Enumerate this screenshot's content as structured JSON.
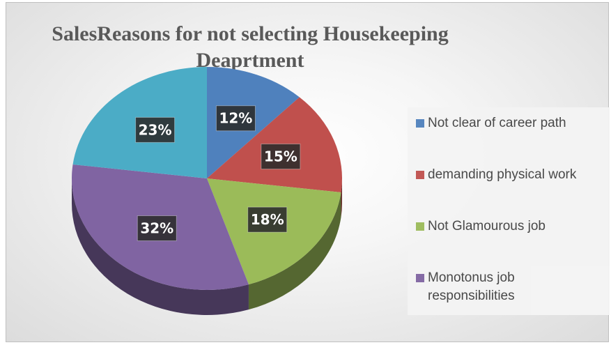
{
  "chart_data": {
    "type": "pie",
    "title": "SalesReasons for not selecting Housekeeping Deaprtment",
    "slices": [
      {
        "label": "Not clear of career path",
        "value": 12,
        "value_label": "12%",
        "color": "#4F81BD"
      },
      {
        "label": "demanding physical work",
        "value": 15,
        "value_label": "15%",
        "color": "#C0504D"
      },
      {
        "label": "Not Glamourous job",
        "value": 18,
        "value_label": "18%",
        "color": "#9BBB59"
      },
      {
        "label": "Monotonus job responsibilities",
        "value": 32,
        "value_label": "32%",
        "color": "#8064A2"
      },
      {
        "label": "",
        "value": 23,
        "value_label": "23%",
        "color": "#4BACC6"
      }
    ],
    "legend_position": "right",
    "style": "3d"
  }
}
